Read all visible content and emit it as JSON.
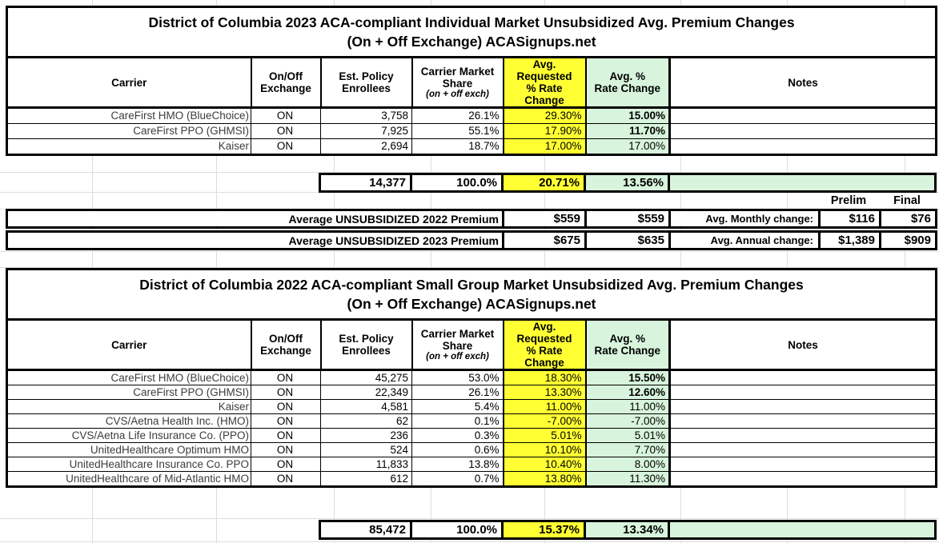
{
  "colors": {
    "highlight_yellow": "#ffff33",
    "highlight_green": "#d8f4dc",
    "border_black": "#000000"
  },
  "tables": [
    {
      "title": "District of Columbia 2023 ACA-compliant Individual Market Unsubsidized Avg. Premium Changes\n(On + Off Exchange) ACASignups.net",
      "headers": {
        "carrier": "Carrier",
        "exchange": "On/Off\nExchange",
        "enrollees": "Est. Policy\nEnrollees",
        "share_main": "Carrier Market\nShare",
        "share_sub": "(on + off exch)",
        "requested": "Avg.\nRequested\n% Rate Change",
        "approved": "Avg. %\nRate Change",
        "notes": "Notes"
      },
      "rows": [
        {
          "carrier": "CareFirst HMO (BlueChoice)",
          "exchange": "ON",
          "enrollees": "3,758",
          "share": "26.1%",
          "requested": "29.30%",
          "approved": "15.00%",
          "approved_bold": true,
          "notes": ""
        },
        {
          "carrier": "CareFirst PPO (GHMSI)",
          "exchange": "ON",
          "enrollees": "7,925",
          "share": "55.1%",
          "requested": "17.90%",
          "approved": "11.70%",
          "approved_bold": true,
          "notes": ""
        },
        {
          "carrier": "Kaiser",
          "exchange": "ON",
          "enrollees": "2,694",
          "share": "18.7%",
          "requested": "17.00%",
          "approved": "17.00%",
          "approved_bold": false,
          "notes": ""
        }
      ],
      "total": {
        "enrollees": "14,377",
        "share": "100.0%",
        "requested": "20.71%",
        "approved": "13.56%",
        "notes": ""
      }
    },
    {
      "title": "District of Columbia 2022 ACA-compliant Small Group Market Unsubsidized Avg. Premium Changes\n(On + Off Exchange) ACASignups.net",
      "headers": {
        "carrier": "Carrier",
        "exchange": "On/Off\nExchange",
        "enrollees": "Est. Policy\nEnrollees",
        "share_main": "Carrier Market\nShare",
        "share_sub": "(on + off exch)",
        "requested": "Avg.\nRequested\n% Rate Change",
        "approved": "Avg. %\nRate Change",
        "notes": "Notes"
      },
      "rows": [
        {
          "carrier": "CareFirst HMO (BlueChoice)",
          "exchange": "ON",
          "enrollees": "45,275",
          "share": "53.0%",
          "requested": "18.30%",
          "approved": "15.50%",
          "approved_bold": true,
          "notes": ""
        },
        {
          "carrier": "CareFirst PPO (GHMSI)",
          "exchange": "ON",
          "enrollees": "22,349",
          "share": "26.1%",
          "requested": "13.30%",
          "approved": "12.60%",
          "approved_bold": true,
          "notes": ""
        },
        {
          "carrier": "Kaiser",
          "exchange": "ON",
          "enrollees": "4,581",
          "share": "5.4%",
          "requested": "11.00%",
          "approved": "11.00%",
          "approved_bold": false,
          "notes": ""
        },
        {
          "carrier": "CVS/Aetna Health Inc. (HMO)",
          "exchange": "ON",
          "enrollees": "62",
          "share": "0.1%",
          "requested": "-7.00%",
          "approved": "-7.00%",
          "approved_bold": false,
          "notes": ""
        },
        {
          "carrier": "CVS/Aetna Life Insurance Co. (PPO)",
          "exchange": "ON",
          "enrollees": "236",
          "share": "0.3%",
          "requested": "5.01%",
          "approved": "5.01%",
          "approved_bold": false,
          "notes": ""
        },
        {
          "carrier": "UnitedHealthcare Optimum HMO",
          "exchange": "ON",
          "enrollees": "524",
          "share": "0.6%",
          "requested": "10.10%",
          "approved": "7.70%",
          "approved_bold": false,
          "notes": ""
        },
        {
          "carrier": "UnitedHealthcare Insurance Co. PPO",
          "exchange": "ON",
          "enrollees": "11,833",
          "share": "13.8%",
          "requested": "10.40%",
          "approved": "8.00%",
          "approved_bold": false,
          "notes": ""
        },
        {
          "carrier": "UnitedHealthcare of Mid-Atlantic HMO",
          "exchange": "ON",
          "enrollees": "612",
          "share": "0.7%",
          "requested": "13.80%",
          "approved": "11.30%",
          "approved_bold": false,
          "notes": ""
        }
      ],
      "total": {
        "enrollees": "85,472",
        "share": "100.0%",
        "requested": "15.37%",
        "approved": "13.34%",
        "notes": ""
      }
    }
  ],
  "summary": {
    "prelim_label": "Prelim",
    "final_label": "Final",
    "rows": [
      {
        "label": "Average UNSUBSIDIZED 2022 Premium",
        "requested": "$559",
        "approved": "$559",
        "change_label": "Avg. Monthly change:",
        "prelim": "$116",
        "final": "$76"
      },
      {
        "label": "Average UNSUBSIDIZED 2023 Premium",
        "requested": "$675",
        "approved": "$635",
        "change_label": "Avg. Annual change:",
        "prelim": "$1,389",
        "final": "$909"
      }
    ]
  }
}
